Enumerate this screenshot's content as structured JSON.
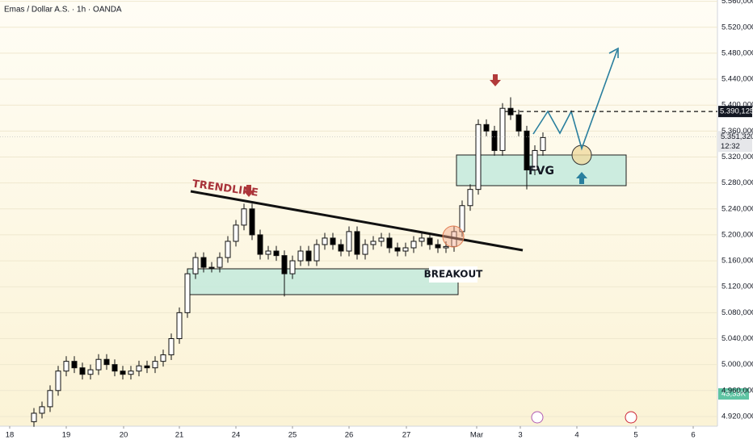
{
  "chart_data": {
    "type": "candlestick",
    "title": "Emas / Dollar A.S. · 1h · OANDA",
    "up_color": "#ffffff",
    "down_color": "#000000",
    "xlim": [
      -1.2,
      87.6
    ],
    "xticks": [
      {
        "value": 0,
        "label": "18"
      },
      {
        "value": 7,
        "label": "19"
      },
      {
        "value": 14.1,
        "label": "20"
      },
      {
        "value": 21,
        "label": "21"
      },
      {
        "value": 28,
        "label": "24"
      },
      {
        "value": 35,
        "label": "25"
      },
      {
        "value": 42,
        "label": "26"
      },
      {
        "value": 49.1,
        "label": "27"
      },
      {
        "value": 57.8,
        "label": "Mar"
      },
      {
        "value": 63.2,
        "label": "3"
      },
      {
        "value": 70.2,
        "label": "4"
      },
      {
        "value": 77.5,
        "label": "5"
      },
      {
        "value": 84.6,
        "label": "6"
      }
    ],
    "ylim": [
      4905,
      5562
    ],
    "yticks": [
      {
        "value": 4920,
        "label": "4.920,000"
      },
      {
        "value": 4960,
        "label": "4.960,000"
      },
      {
        "value": 5000,
        "label": "5.000,000"
      },
      {
        "value": 5040,
        "label": "5.040,000"
      },
      {
        "value": 5080,
        "label": "5.080,000"
      },
      {
        "value": 5120,
        "label": "5.120,000"
      },
      {
        "value": 5160,
        "label": "5.160,000"
      },
      {
        "value": 5200,
        "label": "5.200,000"
      },
      {
        "value": 5240,
        "label": "5.240,000"
      },
      {
        "value": 5280,
        "label": "5.280,000"
      },
      {
        "value": 5320,
        "label": "5.320,000"
      },
      {
        "value": 5360,
        "label": "5.360,000"
      },
      {
        "value": 5400,
        "label": "5.400,000"
      },
      {
        "value": 5440,
        "label": "5.440,000"
      },
      {
        "value": 5480,
        "label": "5.480,000"
      },
      {
        "value": 5520,
        "label": "5.520,000"
      },
      {
        "value": 5560,
        "label": "5.560,000"
      }
    ],
    "x": [
      3,
      4,
      5,
      6,
      7,
      8,
      9,
      10,
      11,
      12,
      13,
      14,
      15,
      16,
      17,
      18,
      19,
      20,
      21,
      22,
      23,
      24,
      25,
      26,
      27,
      28,
      29,
      30,
      31,
      32,
      33,
      34,
      35,
      36,
      37,
      38,
      39,
      40,
      41,
      42,
      43,
      44,
      45,
      46,
      47,
      48,
      49,
      50,
      51,
      52,
      53,
      54,
      55,
      56,
      57,
      58,
      59,
      60,
      61,
      62,
      63,
      64,
      65,
      66
    ],
    "open": [
      4912,
      4925,
      4935,
      4960,
      4990,
      5005,
      4995,
      4985,
      4992,
      5008,
      5000,
      4990,
      4985,
      4990,
      4998,
      4995,
      5005,
      5015,
      5040,
      5080,
      5140,
      5165,
      5150,
      5150,
      5165,
      5190,
      5215,
      5240,
      5200,
      5170,
      5175,
      5168,
      5140,
      5160,
      5175,
      5160,
      5185,
      5195,
      5185,
      5175,
      5205,
      5170,
      5185,
      5190,
      5195,
      5180,
      5175,
      5180,
      5190,
      5195,
      5185,
      5180,
      5182,
      5205,
      5245,
      5270,
      5370,
      5360,
      5330,
      5395,
      5385,
      5360,
      5300,
      5330
    ],
    "high": [
      4933,
      4943,
      4968,
      4998,
      5013,
      5013,
      5003,
      5000,
      5016,
      5016,
      5008,
      4998,
      4998,
      5006,
      5006,
      5013,
      5023,
      5048,
      5088,
      5148,
      5173,
      5173,
      5158,
      5173,
      5198,
      5223,
      5248,
      5248,
      5208,
      5183,
      5183,
      5176,
      5168,
      5183,
      5183,
      5193,
      5203,
      5203,
      5193,
      5213,
      5213,
      5193,
      5198,
      5203,
      5203,
      5188,
      5188,
      5198,
      5203,
      5203,
      5193,
      5190,
      5213,
      5253,
      5278,
      5378,
      5378,
      5368,
      5403,
      5412,
      5393,
      5368,
      5338,
      5358
    ],
    "low": [
      4904,
      4917,
      4927,
      4952,
      4982,
      4987,
      4977,
      4977,
      4984,
      4992,
      4982,
      4977,
      4977,
      4982,
      4987,
      4987,
      4997,
      5007,
      5032,
      5072,
      5132,
      5142,
      5142,
      5142,
      5157,
      5182,
      5207,
      5192,
      5162,
      5162,
      5160,
      5105,
      5132,
      5152,
      5152,
      5152,
      5177,
      5177,
      5167,
      5167,
      5162,
      5162,
      5177,
      5182,
      5172,
      5167,
      5167,
      5172,
      5182,
      5177,
      5172,
      5172,
      5174,
      5197,
      5237,
      5262,
      5352,
      5322,
      5322,
      5377,
      5352,
      5270,
      5292,
      5322
    ],
    "close": [
      4925,
      4935,
      4960,
      4990,
      5005,
      4995,
      4985,
      4992,
      5008,
      5000,
      4990,
      4985,
      4990,
      4998,
      4995,
      5005,
      5015,
      5040,
      5080,
      5140,
      5165,
      5150,
      5150,
      5165,
      5190,
      5215,
      5240,
      5200,
      5170,
      5175,
      5168,
      5140,
      5160,
      5175,
      5160,
      5185,
      5195,
      5185,
      5175,
      5205,
      5170,
      5185,
      5190,
      5195,
      5180,
      5175,
      5180,
      5190,
      5195,
      5185,
      5180,
      5182,
      5205,
      5245,
      5270,
      5370,
      5360,
      5330,
      5395,
      5385,
      5360,
      5300,
      5330,
      5350
    ],
    "target_price": {
      "value": 5390.125,
      "label": "5.390,125"
    },
    "last_price": {
      "value": 5351.32,
      "label": "5.351,320"
    },
    "countdown": "12:32",
    "volume_label": "43,33K",
    "annotations": {
      "trendline": "TRENDLINE",
      "breakout": "BREAKOUT",
      "fvg": "FVG"
    }
  }
}
